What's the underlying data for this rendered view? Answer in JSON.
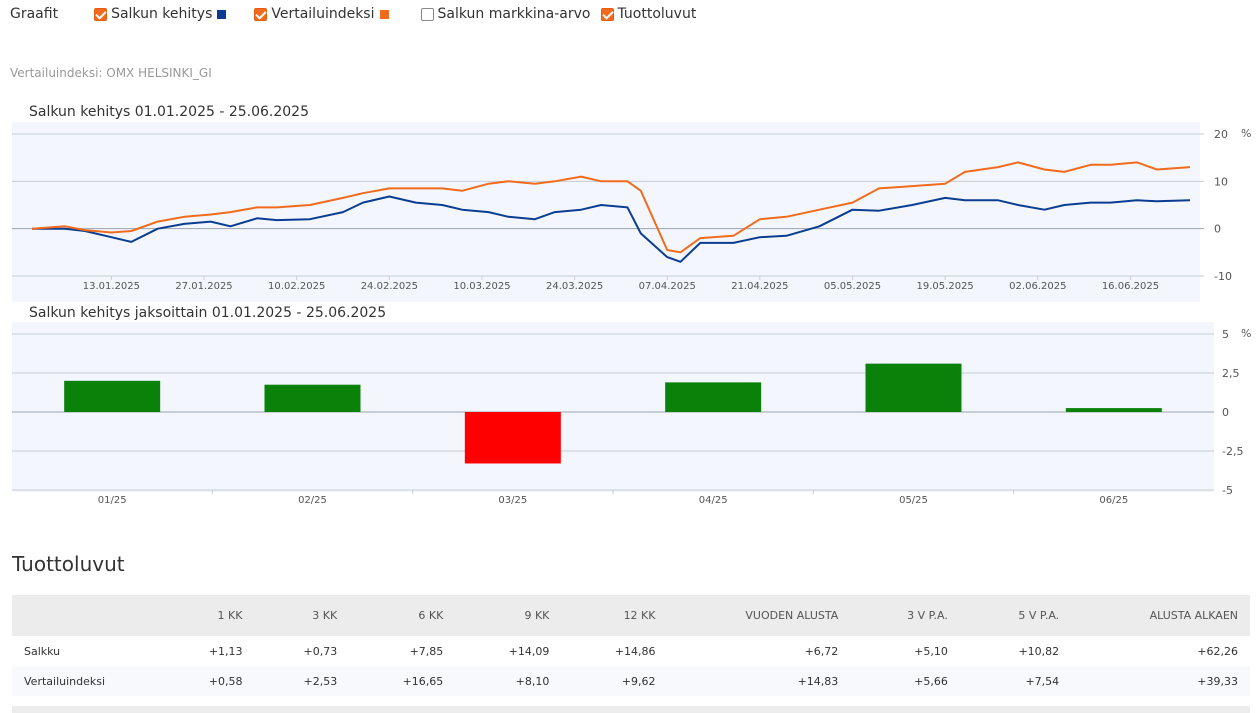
{
  "controls": {
    "label": "Graafit",
    "items": [
      {
        "label": "Salkun kehitys",
        "checked": true,
        "color": "#0a3d91"
      },
      {
        "label": "Vertailuindeksi",
        "checked": true,
        "color": "#f26b1d"
      },
      {
        "label": "Salkun markkina-arvo",
        "checked": false
      },
      {
        "label": "Tuottoluvut",
        "checked": true
      }
    ]
  },
  "benchmark_text": "Vertailuindeksi:  OMX HELSINKI_GI",
  "chart_data": [
    {
      "type": "line",
      "title": "Salkun kehitys 01.01.2025 - 25.06.2025",
      "unit": "%",
      "ylim": [
        -10,
        20
      ],
      "yticks": [
        20,
        10,
        0,
        -10
      ],
      "xlim": [
        "2025-01-01",
        "2025-06-25"
      ],
      "xticks": [
        "13.01.2025",
        "27.01.2025",
        "10.02.2025",
        "24.02.2025",
        "10.03.2025",
        "24.03.2025",
        "07.04.2025",
        "21.04.2025",
        "05.05.2025",
        "19.05.2025",
        "02.06.2025",
        "16.06.2025"
      ],
      "grid": true,
      "series": [
        {
          "name": "Salkun kehitys",
          "color": "#0a3d91",
          "x": [
            "2025-01-01",
            "2025-01-06",
            "2025-01-09",
            "2025-01-13",
            "2025-01-16",
            "2025-01-20",
            "2025-01-24",
            "2025-01-28",
            "2025-01-31",
            "2025-02-04",
            "2025-02-07",
            "2025-02-12",
            "2025-02-17",
            "2025-02-20",
            "2025-02-24",
            "2025-02-28",
            "2025-03-04",
            "2025-03-07",
            "2025-03-11",
            "2025-03-14",
            "2025-03-18",
            "2025-03-21",
            "2025-03-25",
            "2025-03-28",
            "2025-04-01",
            "2025-04-03",
            "2025-04-07",
            "2025-04-09",
            "2025-04-12",
            "2025-04-17",
            "2025-04-21",
            "2025-04-25",
            "2025-04-30",
            "2025-05-05",
            "2025-05-09",
            "2025-05-14",
            "2025-05-19",
            "2025-05-22",
            "2025-05-27",
            "2025-05-30",
            "2025-06-03",
            "2025-06-06",
            "2025-06-10",
            "2025-06-13",
            "2025-06-17",
            "2025-06-20",
            "2025-06-25"
          ],
          "y": [
            0,
            0,
            -0.5,
            -1.8,
            -2.8,
            0,
            1,
            1.5,
            0.5,
            2.2,
            1.8,
            2,
            3.5,
            5.5,
            6.8,
            5.5,
            5,
            4,
            3.5,
            2.5,
            2,
            3.5,
            4,
            5,
            4.5,
            -1,
            -6,
            -7,
            -3,
            -3,
            -1.8,
            -1.5,
            0.5,
            4,
            3.8,
            5,
            6.5,
            6,
            6,
            5,
            4,
            5,
            5.5,
            5.5,
            6,
            5.8,
            6
          ]
        },
        {
          "name": "Vertailuindeksi",
          "color": "#f26b1d",
          "x": [
            "2025-01-01",
            "2025-01-06",
            "2025-01-09",
            "2025-01-13",
            "2025-01-16",
            "2025-01-20",
            "2025-01-24",
            "2025-01-28",
            "2025-01-31",
            "2025-02-04",
            "2025-02-07",
            "2025-02-12",
            "2025-02-17",
            "2025-02-20",
            "2025-02-24",
            "2025-02-28",
            "2025-03-04",
            "2025-03-07",
            "2025-03-11",
            "2025-03-14",
            "2025-03-18",
            "2025-03-21",
            "2025-03-25",
            "2025-03-28",
            "2025-04-01",
            "2025-04-03",
            "2025-04-07",
            "2025-04-09",
            "2025-04-12",
            "2025-04-17",
            "2025-04-21",
            "2025-04-25",
            "2025-04-30",
            "2025-05-05",
            "2025-05-09",
            "2025-05-14",
            "2025-05-19",
            "2025-05-22",
            "2025-05-27",
            "2025-05-30",
            "2025-06-03",
            "2025-06-06",
            "2025-06-10",
            "2025-06-13",
            "2025-06-17",
            "2025-06-20",
            "2025-06-25"
          ],
          "y": [
            0,
            0.5,
            -0.3,
            -0.8,
            -0.5,
            1.5,
            2.5,
            3,
            3.5,
            4.5,
            4.5,
            5,
            6.5,
            7.5,
            8.5,
            8.5,
            8.5,
            8,
            9.5,
            10,
            9.5,
            10,
            11,
            10,
            10,
            8,
            -4.5,
            -5,
            -2,
            -1.5,
            2,
            2.5,
            4,
            5.5,
            8.5,
            9,
            9.5,
            12,
            13,
            14,
            12.5,
            12,
            13.5,
            13.5,
            14,
            12.5,
            13
          ]
        }
      ]
    },
    {
      "type": "bar",
      "title": "Salkun kehitys jaksoittain 01.01.2025 - 25.06.2025",
      "unit": "%",
      "ylim": [
        -5,
        5
      ],
      "yticks": [
        "5",
        "2,5",
        "0",
        "-2,5",
        "-5"
      ],
      "categories": [
        "01/25",
        "02/25",
        "03/25",
        "04/25",
        "05/25",
        "06/25"
      ],
      "values": [
        2,
        1.75,
        -3.3,
        1.9,
        3.1,
        0.25
      ],
      "colors": {
        "positive": "#0a820a",
        "negative": "#ff0000"
      },
      "grid": true
    }
  ],
  "returns": {
    "title": "Tuottoluvut",
    "headers": [
      "",
      "1 KK",
      "3 KK",
      "6 KK",
      "9 KK",
      "12 KK",
      "VUODEN ALUSTA",
      "3 V P.A.",
      "5 V P.A.",
      "ALUSTA ALKAEN"
    ],
    "rows": [
      {
        "name": "Salkku",
        "values": [
          "+1,13",
          "+0,73",
          "+7,85",
          "+14,09",
          "+14,86",
          "+6,72",
          "+5,10",
          "+10,82",
          "+62,26"
        ]
      },
      {
        "name": "Vertailuindeksi",
        "values": [
          "+0,58",
          "+2,53",
          "+16,65",
          "+8,10",
          "+9,62",
          "+14,83",
          "+5,66",
          "+7,54",
          "+39,33"
        ]
      }
    ]
  }
}
